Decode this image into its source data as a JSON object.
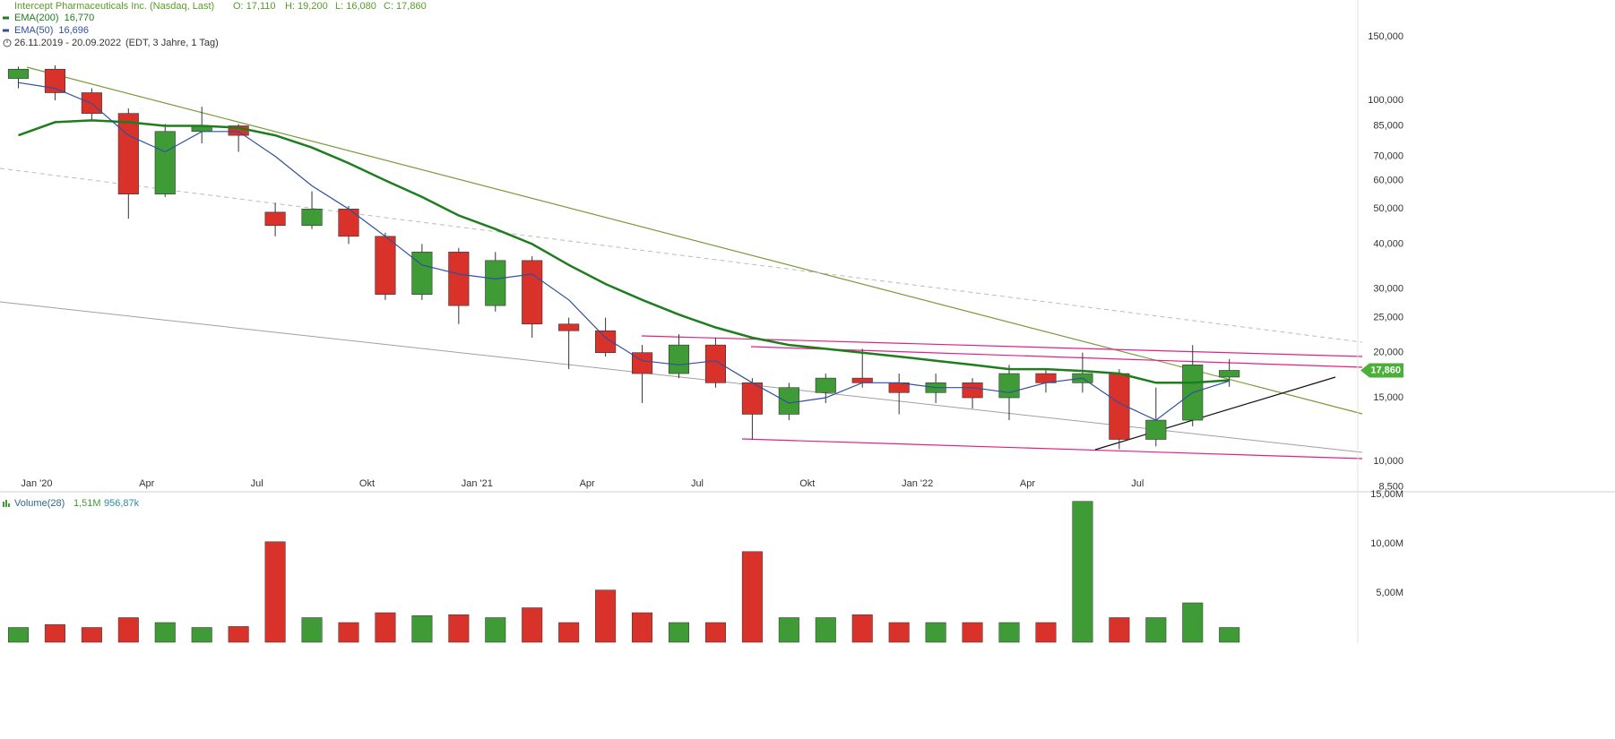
{
  "chart_data": [
    {
      "type": "candlestick",
      "title": "Intercept Pharmaceuticals Inc. (Nasdaq, Last)",
      "quote": [
        "O: 17,110",
        "H: 19,200",
        "L: 16,080",
        "C: 17,860"
      ],
      "date_range": "26.11.2019 - 20.09.2022",
      "range_note": "(EDT, 3 Jahre, 1 Tag)",
      "x": [
        "2019-12",
        "2020-01",
        "2020-02",
        "2020-03",
        "2020-04",
        "2020-05",
        "2020-06",
        "2020-07",
        "2020-08",
        "2020-09",
        "2020-10",
        "2020-11",
        "2020-12",
        "2021-01",
        "2021-02",
        "2021-03",
        "2021-04",
        "2021-05",
        "2021-06",
        "2021-07",
        "2021-08",
        "2021-09",
        "2021-10",
        "2021-11",
        "2021-12",
        "2022-01",
        "2022-02",
        "2022-03",
        "2022-04",
        "2022-05",
        "2022-06",
        "2022-07",
        "2022-08",
        "2022-09"
      ],
      "open": [
        115000,
        122000,
        105000,
        92000,
        55000,
        82000,
        85000,
        49000,
        45000,
        50000,
        42000,
        29000,
        38000,
        27000,
        36000,
        24000,
        23000,
        20000,
        17500,
        21000,
        16500,
        13500,
        15500,
        17000,
        16500,
        15500,
        16500,
        15000,
        17500,
        16500,
        17500,
        11500,
        13000,
        17110
      ],
      "high": [
        124000,
        125000,
        108000,
        95000,
        86000,
        96000,
        86000,
        52000,
        56000,
        51000,
        43000,
        40000,
        39000,
        38000,
        37000,
        25000,
        25000,
        21000,
        22500,
        22000,
        17000,
        16500,
        17500,
        20500,
        17500,
        17500,
        17000,
        18500,
        18000,
        20000,
        18000,
        16000,
        21000,
        19200
      ],
      "low": [
        108000,
        100000,
        88000,
        47000,
        54000,
        76000,
        72000,
        42000,
        44000,
        40000,
        28000,
        28000,
        24000,
        26000,
        22000,
        18000,
        19500,
        14500,
        17000,
        16000,
        11500,
        13000,
        14500,
        16000,
        13500,
        14500,
        14000,
        13000,
        15500,
        15500,
        10800,
        11000,
        12500,
        16080
      ],
      "close": [
        122000,
        105000,
        92000,
        55000,
        82000,
        85000,
        80000,
        45000,
        50000,
        42000,
        29000,
        38000,
        27000,
        36000,
        24000,
        23000,
        20000,
        17500,
        21000,
        16500,
        13500,
        16000,
        17000,
        16500,
        15500,
        16500,
        15000,
        17500,
        16500,
        17500,
        11500,
        13000,
        18500,
        17860
      ],
      "up_color": "#3f9b35",
      "down_color": "#d8322a",
      "series": [
        {
          "name": "EMA(200)",
          "color": "#1e7d1e",
          "last_label": "16,770",
          "values": [
            80000,
            87000,
            88000,
            87000,
            85000,
            85000,
            84000,
            80000,
            74000,
            67000,
            60000,
            54000,
            48000,
            44000,
            40000,
            35000,
            31000,
            28000,
            25500,
            23500,
            22000,
            21000,
            20500,
            20000,
            19500,
            19000,
            18500,
            18000,
            18000,
            17800,
            17500,
            16500,
            16500,
            16770
          ]
        },
        {
          "name": "EMA(50)",
          "color": "#2f4fa0",
          "last_label": "16,696",
          "values": [
            112000,
            108000,
            98000,
            80000,
            72000,
            82000,
            82000,
            70000,
            58000,
            50000,
            42000,
            35000,
            33000,
            32000,
            33000,
            28000,
            22000,
            19000,
            18500,
            19000,
            16500,
            14500,
            15000,
            16500,
            16500,
            16000,
            16000,
            15500,
            16500,
            17000,
            14500,
            13000,
            15500,
            16696
          ]
        }
      ],
      "last_price": {
        "value": 17860,
        "label": "17,860"
      },
      "log_scale": true,
      "grid": true,
      "xlim": [
        "2019-12",
        "2023-01"
      ],
      "xticks": [
        {
          "value": "2020-01",
          "label": "Jan '20"
        },
        {
          "value": "2020-04",
          "label": "Apr"
        },
        {
          "value": "2020-07",
          "label": "Jul"
        },
        {
          "value": "2020-10",
          "label": "Okt"
        },
        {
          "value": "2021-01",
          "label": "Jan '21"
        },
        {
          "value": "2021-04",
          "label": "Apr"
        },
        {
          "value": "2021-07",
          "label": "Jul"
        },
        {
          "value": "2021-10",
          "label": "Okt"
        },
        {
          "value": "2022-01",
          "label": "Jan '22"
        },
        {
          "value": "2022-04",
          "label": "Apr"
        },
        {
          "value": "2022-07",
          "label": "Jul"
        }
      ],
      "ylim": [
        8280,
        189700
      ],
      "yticks": [
        {
          "value": 150000,
          "label": "150,000"
        },
        {
          "value": 100000,
          "label": "100,000"
        },
        {
          "value": 85000,
          "label": "85,000"
        },
        {
          "value": 70000,
          "label": "70,000"
        },
        {
          "value": 60000,
          "label": "60,000"
        },
        {
          "value": 50000,
          "label": "50,000"
        },
        {
          "value": 40000,
          "label": "40,000"
        },
        {
          "value": 30000,
          "label": "30,000"
        },
        {
          "value": 25000,
          "label": "25,000"
        },
        {
          "value": 20000,
          "label": "20,000"
        },
        {
          "value": 15000,
          "label": "15,000"
        },
        {
          "value": 10000,
          "label": "10,000"
        },
        {
          "value": 8500,
          "label": "8,500"
        }
      ]
    },
    {
      "type": "bar",
      "title": "Volume(28)",
      "header_values": [
        "1,51M",
        "956,87k"
      ],
      "x": [
        "2019-12",
        "2020-01",
        "2020-02",
        "2020-03",
        "2020-04",
        "2020-05",
        "2020-06",
        "2020-07",
        "2020-08",
        "2020-09",
        "2020-10",
        "2020-11",
        "2020-12",
        "2021-01",
        "2021-02",
        "2021-03",
        "2021-04",
        "2021-05",
        "2021-06",
        "2021-07",
        "2021-08",
        "2021-09",
        "2021-10",
        "2021-11",
        "2021-12",
        "2022-01",
        "2022-02",
        "2022-03",
        "2022-04",
        "2022-05",
        "2022-06",
        "2022-07",
        "2022-08",
        "2022-09"
      ],
      "values": [
        1500000,
        1800000,
        1500000,
        2500000,
        2000000,
        1500000,
        1600000,
        10200000,
        2500000,
        2000000,
        3000000,
        2700000,
        2800000,
        2500000,
        3500000,
        2000000,
        5300000,
        3000000,
        2000000,
        2000000,
        9200000,
        2500000,
        2500000,
        2800000,
        2000000,
        2000000,
        2000000,
        2000000,
        2000000,
        14300000,
        2500000,
        2500000,
        4000000,
        1500000
      ],
      "ylim": [
        0,
        15180000
      ],
      "yticks": [
        {
          "value": 5000000,
          "label": "5,00M"
        },
        {
          "value": 10000000,
          "label": "10,00M"
        },
        {
          "value": 15000000,
          "label": "15,00M"
        }
      ]
    }
  ]
}
